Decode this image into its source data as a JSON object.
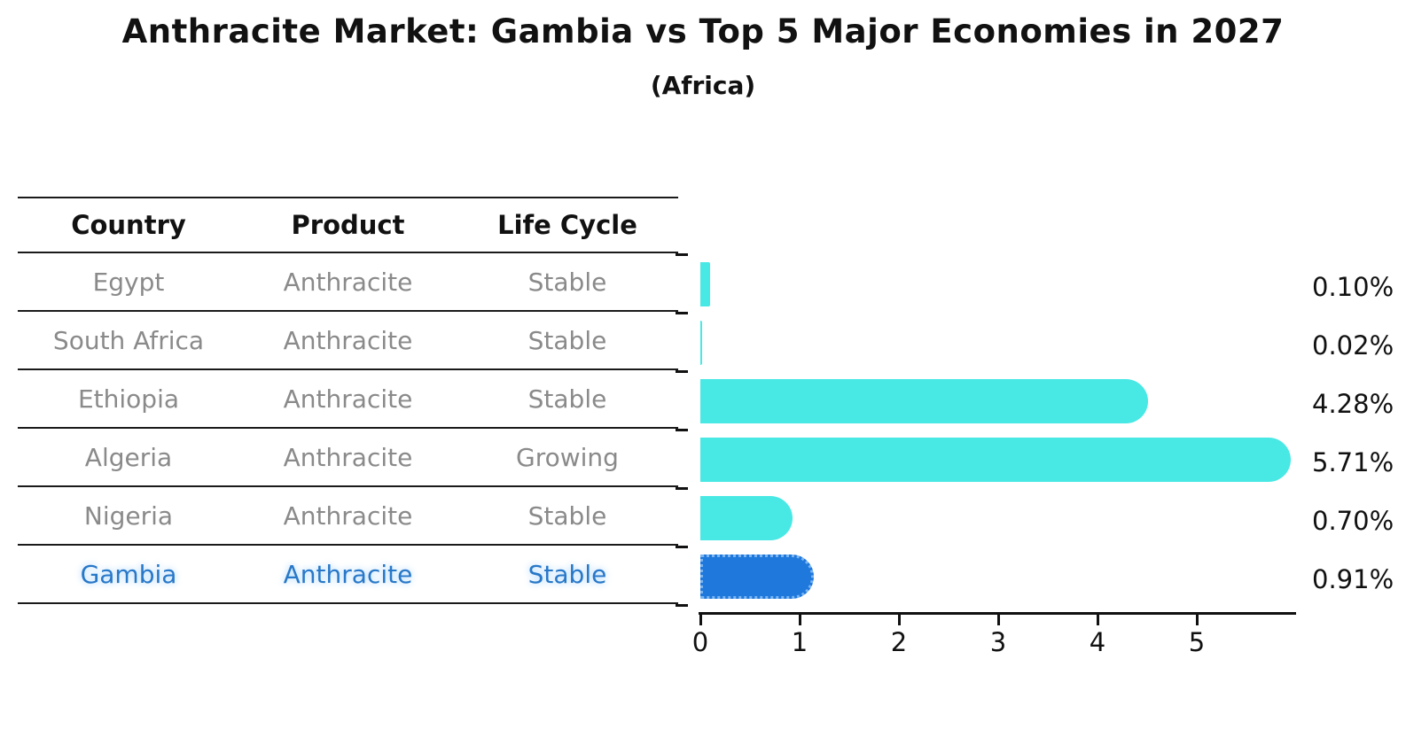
{
  "title": "Anthracite Market: Gambia vs Top 5 Major Economies in 2027",
  "subtitle": "(Africa)",
  "table": {
    "headers": [
      "Country",
      "Product",
      "Life Cycle"
    ],
    "rows": [
      {
        "country": "Egypt",
        "product": "Anthracite",
        "life_cycle": "Stable",
        "highlight": false
      },
      {
        "country": "South Africa",
        "product": "Anthracite",
        "life_cycle": "Stable",
        "highlight": false
      },
      {
        "country": "Ethiopia",
        "product": "Anthracite",
        "life_cycle": "Stable",
        "highlight": false
      },
      {
        "country": "Algeria",
        "product": "Anthracite",
        "life_cycle": "Growing",
        "highlight": false
      },
      {
        "country": "Nigeria",
        "product": "Anthracite",
        "life_cycle": "Stable",
        "highlight": false
      },
      {
        "country": "Gambia",
        "product": "Anthracite",
        "life_cycle": "Stable",
        "highlight": true
      }
    ]
  },
  "chart_data": {
    "type": "bar",
    "orientation": "horizontal",
    "title": "Anthracite Market: Gambia vs Top 5 Major Economies in 2027 (Africa)",
    "categories": [
      "Egypt",
      "South Africa",
      "Ethiopia",
      "Algeria",
      "Nigeria",
      "Gambia"
    ],
    "values": [
      0.1,
      0.02,
      4.28,
      5.71,
      0.7,
      0.91
    ],
    "value_labels": [
      "0.10%",
      "0.02%",
      "4.28%",
      "5.71%",
      "0.70%",
      "0.91%"
    ],
    "xlabel": "",
    "ylabel": "",
    "xlim": [
      0,
      6
    ],
    "xticks": [
      0,
      1,
      2,
      3,
      4,
      5
    ],
    "xtick_labels": [
      "0",
      "1",
      "2",
      "3",
      "4",
      "5"
    ],
    "grid": false,
    "legend": false,
    "highlight_index": 5,
    "bar_color": "#48E8E4",
    "highlight_color": "#1F78DC",
    "highlight_border_color": "#7AB5F2"
  },
  "colors": {
    "highlight_text": "#2878C8",
    "table_text": "#8a8a8a",
    "header_text": "#111111"
  }
}
